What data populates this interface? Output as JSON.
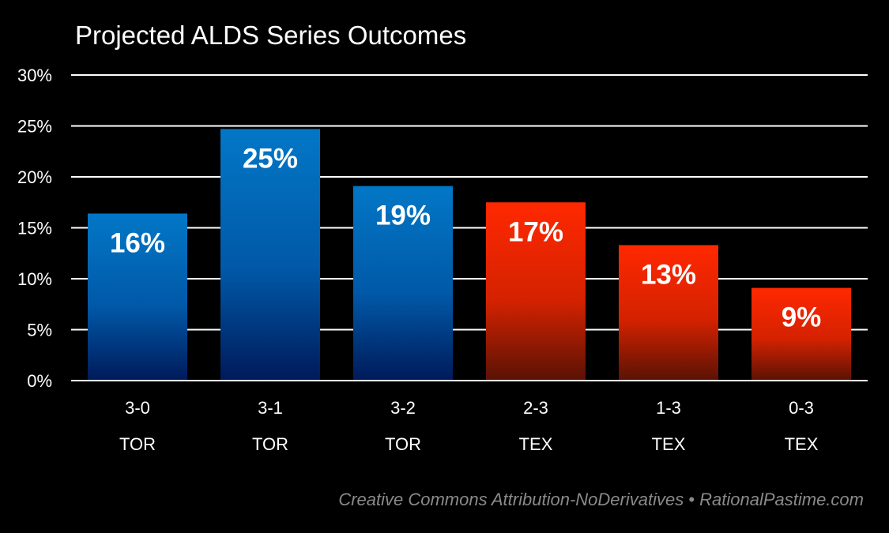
{
  "chart_data": {
    "type": "bar",
    "title": "Projected ALDS Series Outcomes",
    "xlabel": "",
    "ylabel": "",
    "ylim": [
      0,
      30
    ],
    "yticks": [
      0,
      5,
      10,
      15,
      20,
      25,
      30
    ],
    "ytick_labels": [
      "0%",
      "5%",
      "10%",
      "15%",
      "20%",
      "25%",
      "30%"
    ],
    "grid": true,
    "categories": [
      "3-0",
      "3-1",
      "3-2",
      "2-3",
      "1-3",
      "0-3"
    ],
    "teams": [
      "TOR",
      "TOR",
      "TOR",
      "TEX",
      "TEX",
      "TEX"
    ],
    "values": [
      16.4,
      24.7,
      19.1,
      17.5,
      13.3,
      9.1
    ],
    "data_labels": [
      "16%",
      "25%",
      "19%",
      "17%",
      "13%",
      "9%"
    ],
    "team_colors": {
      "TOR": {
        "top": "#0277c6",
        "bottom": "#001a5a"
      },
      "TEX": {
        "top": "#ff2800",
        "bottom": "#5a1205"
      }
    }
  },
  "footer": {
    "credit": "Creative Commons Attribution-NoDerivatives • RationalPastime.com"
  }
}
